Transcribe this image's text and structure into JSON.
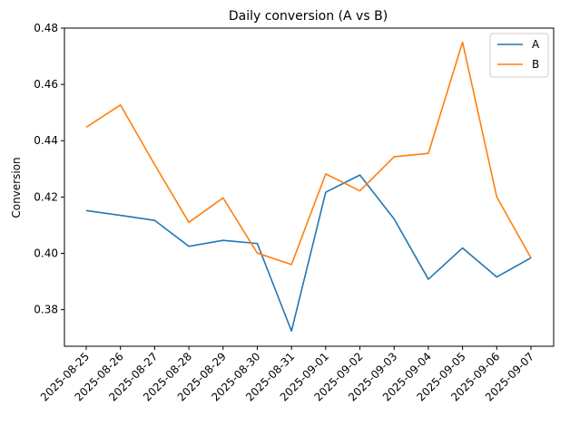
{
  "chart_data": {
    "type": "line",
    "title": "Daily conversion (A vs B)",
    "xlabel": "",
    "ylabel": "Conversion",
    "x": [
      "2025-08-25",
      "2025-08-26",
      "2025-08-27",
      "2025-08-28",
      "2025-08-29",
      "2025-08-30",
      "2025-08-31",
      "2025-09-01",
      "2025-09-02",
      "2025-09-03",
      "2025-09-04",
      "2025-09-05",
      "2025-09-06",
      "2025-09-07"
    ],
    "ylim": [
      0.367,
      0.48
    ],
    "yticks": [
      "0.38",
      "0.40",
      "0.42",
      "0.44",
      "0.46",
      "0.48"
    ],
    "grid": false,
    "legend_position": "top-right",
    "series": [
      {
        "name": "A",
        "color": "#1f77b4",
        "values": [
          0.4152,
          0.4135,
          0.4117,
          0.4025,
          0.4046,
          0.4035,
          0.3724,
          0.4217,
          0.4278,
          0.4122,
          0.3908,
          0.4019,
          0.3916,
          0.3984
        ]
      },
      {
        "name": "B",
        "color": "#ff7f0e",
        "values": [
          0.4448,
          0.4527,
          0.4315,
          0.411,
          0.4197,
          0.4001,
          0.396,
          0.4282,
          0.4222,
          0.4343,
          0.4355,
          0.475,
          0.42,
          0.3984
        ]
      }
    ]
  }
}
